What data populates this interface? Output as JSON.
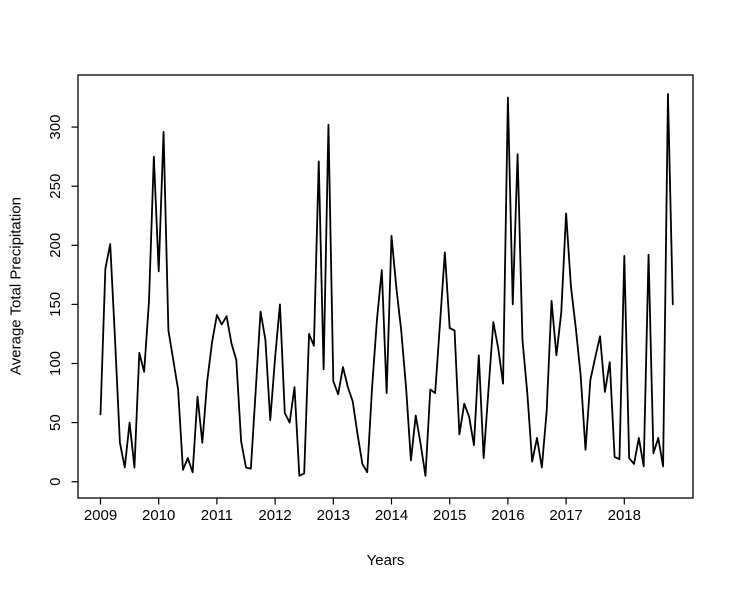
{
  "page": {
    "background": "#ffffff",
    "foreground": "#000000"
  },
  "chart_data": {
    "type": "line",
    "title": "",
    "xlabel": "Years",
    "ylabel": "Average Total Precipitation",
    "legend": "none",
    "grid": false,
    "line_color": "#000000",
    "x_start": "2009-01",
    "x_frequency": "monthly",
    "x_tick_labels": [
      "2009",
      "2010",
      "2011",
      "2012",
      "2013",
      "2014",
      "2015",
      "2016",
      "2017",
      "2018"
    ],
    "x_ticks": [
      2009,
      2010,
      2011,
      2012,
      2013,
      2014,
      2015,
      2016,
      2017,
      2018
    ],
    "y_tick_labels": [
      "0",
      "50",
      "100",
      "150",
      "200",
      "250",
      "300"
    ],
    "y_ticks": [
      0,
      50,
      100,
      150,
      200,
      250,
      300
    ],
    "xlim_years": [
      2008.61,
      2019.19
    ],
    "ylim": [
      -13.8,
      344
    ],
    "series": [
      {
        "name": "Average Total Precipitation",
        "values": [
          57,
          180,
          201,
          120,
          33,
          12,
          50,
          12,
          109,
          93,
          153,
          275,
          178,
          296,
          128,
          103,
          78,
          10,
          20,
          8,
          72,
          33,
          85,
          118,
          141,
          133,
          140,
          117,
          103,
          34,
          12,
          11,
          77,
          144,
          120,
          52,
          105,
          150,
          58,
          50,
          80,
          5,
          7,
          125,
          115,
          271,
          95,
          302,
          85,
          74,
          97,
          80,
          68,
          40,
          15,
          8,
          80,
          137,
          179,
          75,
          208,
          164,
          128,
          80,
          18,
          56,
          32,
          5,
          78,
          75,
          134,
          194,
          130,
          128,
          40,
          66,
          55,
          31,
          107,
          20,
          78,
          135,
          113,
          83,
          325,
          150,
          277,
          120,
          75,
          17,
          37,
          12,
          60,
          153,
          107,
          143,
          227,
          165,
          130,
          90,
          27,
          86,
          105,
          123,
          76,
          101,
          21,
          19,
          191,
          20,
          15,
          37,
          13,
          192,
          24,
          37,
          13,
          328,
          150
        ]
      }
    ]
  }
}
